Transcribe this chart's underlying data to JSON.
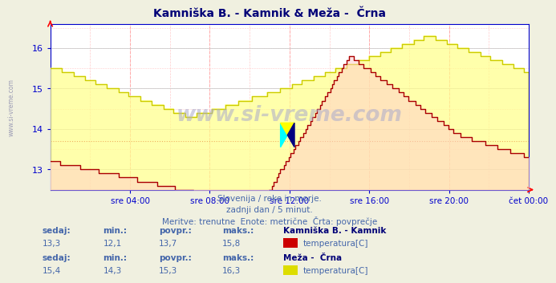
{
  "title": "Kamniška B. - Kamnik & Meža -  Črna",
  "bg_color": "#f0f0e0",
  "plot_bg_color": "#ffffff",
  "axis_color": "#0000cc",
  "title_color": "#000077",
  "watermark": "www.si-vreme.com",
  "xlabel_ticks": [
    "sre 04:00",
    "sre 08:00",
    "sre 12:00",
    "sre 16:00",
    "sre 20:00",
    "čet 00:00"
  ],
  "ylim": [
    12.5,
    16.6
  ],
  "yticks": [
    13,
    14,
    15,
    16
  ],
  "footnote_line1": "Slovenija / reke in morje.",
  "footnote_line2": "zadnji dan / 5 minut.",
  "footnote_line3": "Meritve: trenutne  Enote: metrične  Črta: povprečje",
  "stats1_label": "Kamniška B. - Kamnik",
  "stats1_sedaj": "13,3",
  "stats1_min": "12,1",
  "stats1_povpr": "13,7",
  "stats1_maks": "15,8",
  "stats1_color": "#cc0000",
  "stats2_label": "Meža -  Črna",
  "stats2_sedaj": "15,4",
  "stats2_min": "14,3",
  "stats2_povpr": "15,3",
  "stats2_maks": "16,3",
  "stats2_color": "#dddd00",
  "series1_color": "#aa0000",
  "series2_color": "#cccc00",
  "avg1_value": 13.7,
  "n_points": 288
}
